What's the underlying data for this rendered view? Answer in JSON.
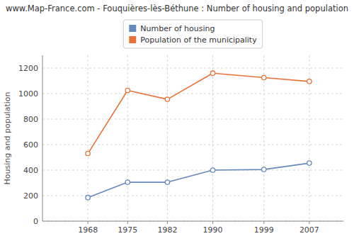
{
  "chart_data": {
    "type": "line",
    "title": "www.Map-France.com - Fouquières-lès-Béthune : Number of housing and population",
    "y_label": "Housing and population",
    "x": [
      1968,
      1975,
      1982,
      1990,
      1999,
      2007
    ],
    "series": [
      {
        "name": "Number of housing",
        "color": "#6688bb",
        "values": [
          185,
          305,
          305,
          400,
          405,
          455
        ]
      },
      {
        "name": "Population of the municipality",
        "color": "#e8733a",
        "values": [
          530,
          1025,
          955,
          1160,
          1125,
          1095
        ]
      }
    ],
    "xlim": [
      1960,
      2013
    ],
    "xticks": [
      1968,
      1975,
      1982,
      1990,
      1999,
      2007
    ],
    "ylim": [
      0,
      1300
    ],
    "yticks": [
      0,
      200,
      400,
      600,
      800,
      1000,
      1200
    ],
    "grid": true,
    "legend": "top",
    "marker": "circle"
  }
}
